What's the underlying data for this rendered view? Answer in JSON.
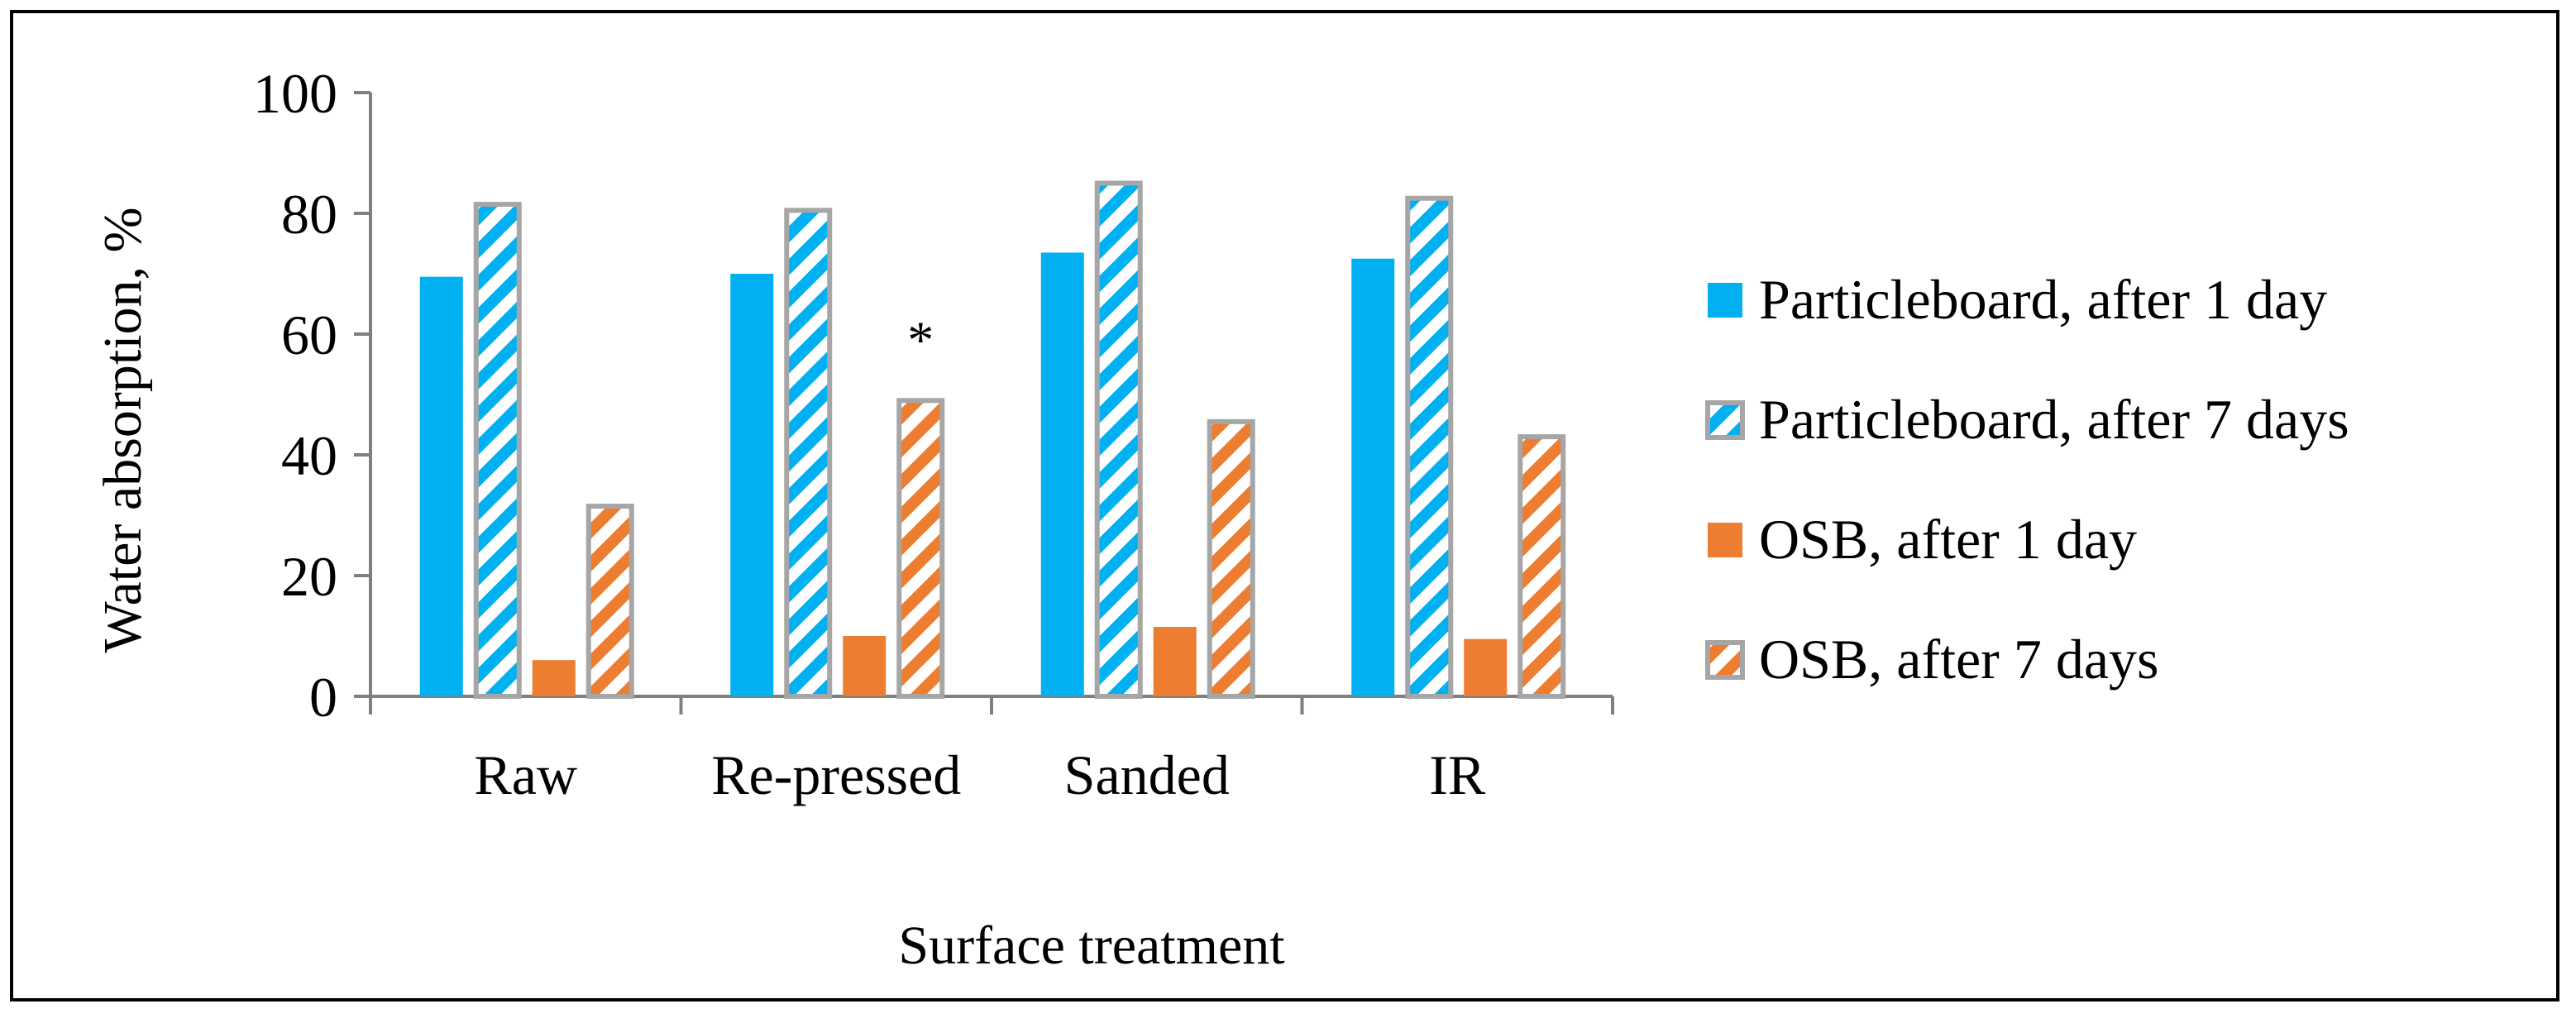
{
  "chart_data": {
    "type": "bar",
    "title": "",
    "xlabel": "Surface treatment",
    "ylabel": "Water absorption, %",
    "ylim": [
      0,
      100
    ],
    "yticks": [
      "0",
      "20",
      "40",
      "60",
      "80",
      "100"
    ],
    "grid": false,
    "legend_position": "right",
    "categories": [
      "Raw",
      "Re-pressed",
      "Sanded",
      "IR"
    ],
    "series": [
      {
        "name": "Particleboard, after 1 day",
        "values": [
          69.5,
          70,
          73.5,
          72.5
        ],
        "color": "#00b0f0",
        "pattern": "solid"
      },
      {
        "name": "Particleboard, after 7 days",
        "values": [
          81.5,
          80.5,
          85,
          82.5
        ],
        "color": "#00b0f0",
        "pattern": "hatched"
      },
      {
        "name": "OSB, after 1 day",
        "values": [
          6,
          10,
          11.5,
          9.5
        ],
        "color": "#ed7d31",
        "pattern": "solid"
      },
      {
        "name": "OSB, after 7 days",
        "values": [
          31.5,
          49,
          45.5,
          43
        ],
        "color": "#ed7d31",
        "pattern": "hatched"
      }
    ],
    "annotations": [
      {
        "text": "*",
        "category": "Re-pressed",
        "series": "OSB, after 7 days"
      }
    ]
  }
}
